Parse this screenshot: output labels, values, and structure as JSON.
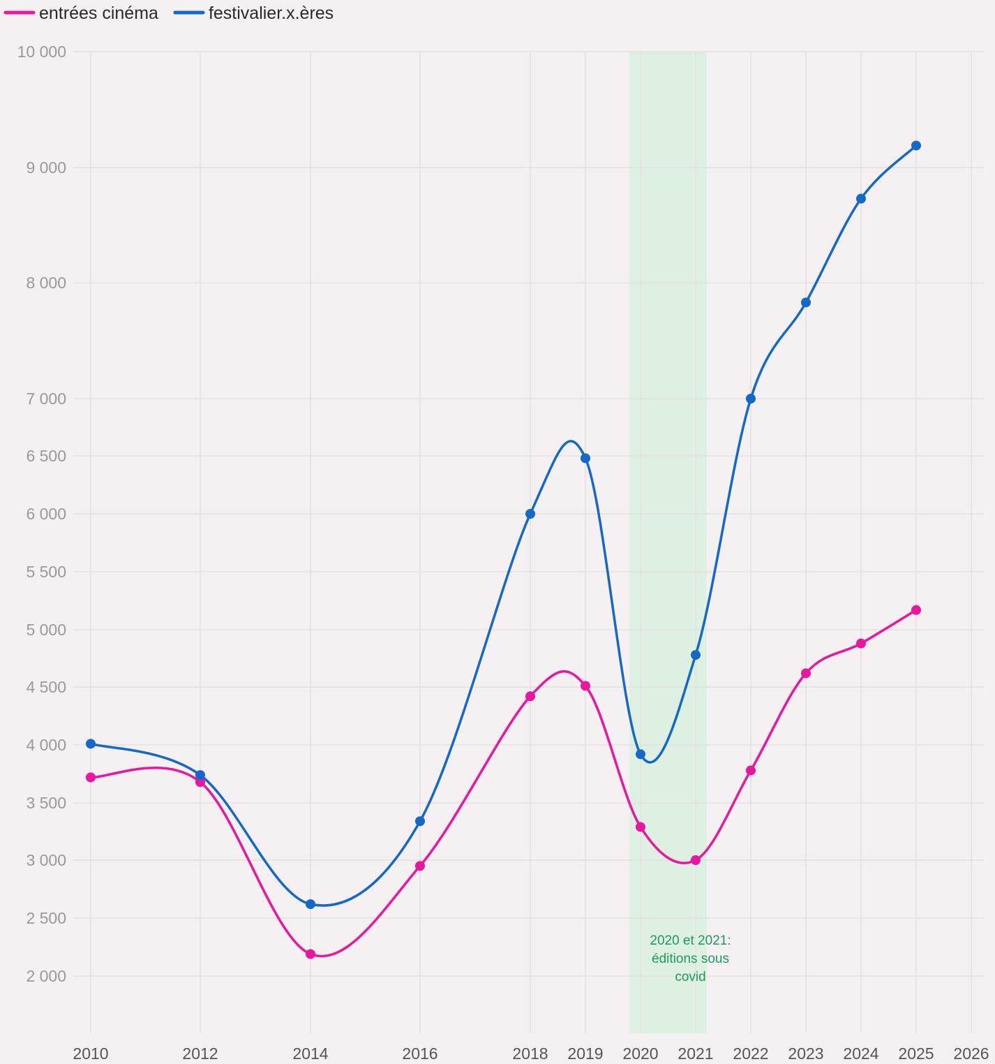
{
  "chart_data": {
    "type": "line",
    "title": "",
    "xlabel": "",
    "ylabel": "",
    "x_ticks": [
      2010,
      2012,
      2014,
      2016,
      2018,
      2019,
      2020,
      2021,
      2022,
      2023,
      2024,
      2025,
      2026
    ],
    "y_ticks": [
      "10 000",
      "9 000",
      "8 000",
      "7 000",
      "6 500",
      "6 000",
      "5 500",
      "5 000",
      "4 500",
      "4 000",
      "3 500",
      "3 000",
      "2 500",
      "2 000"
    ],
    "y_tick_values": [
      10000,
      9000,
      8000,
      7000,
      6500,
      6000,
      5500,
      5000,
      4500,
      4000,
      3500,
      3000,
      2500,
      2000
    ],
    "grid": true,
    "legend_position": "top-left",
    "series": [
      {
        "name": "entrées cinéma",
        "color": "#e9169f",
        "x": [
          2010,
          2012,
          2014,
          2016,
          2018,
          2019,
          2020,
          2021,
          2022,
          2023,
          2024,
          2025
        ],
        "values": [
          3720,
          3680,
          2190,
          2950,
          4420,
          4510,
          3290,
          3000,
          3780,
          4620,
          4880,
          5170
        ]
      },
      {
        "name": "festivalier.x.ères",
        "color": "#1468c8",
        "x": [
          2010,
          2012,
          2014,
          2016,
          2018,
          2019,
          2020,
          2021,
          2022,
          2023,
          2024,
          2025
        ],
        "values": [
          4010,
          3740,
          2620,
          3340,
          6000,
          6480,
          3920,
          4780,
          7000,
          7830,
          8730,
          9190
        ]
      }
    ],
    "highlight": {
      "x_start": 2019.8,
      "x_end": 2021.2,
      "color": "#d8f0de",
      "label_lines": [
        "2020 et 2021:",
        "éditions sous",
        "covid"
      ]
    }
  }
}
